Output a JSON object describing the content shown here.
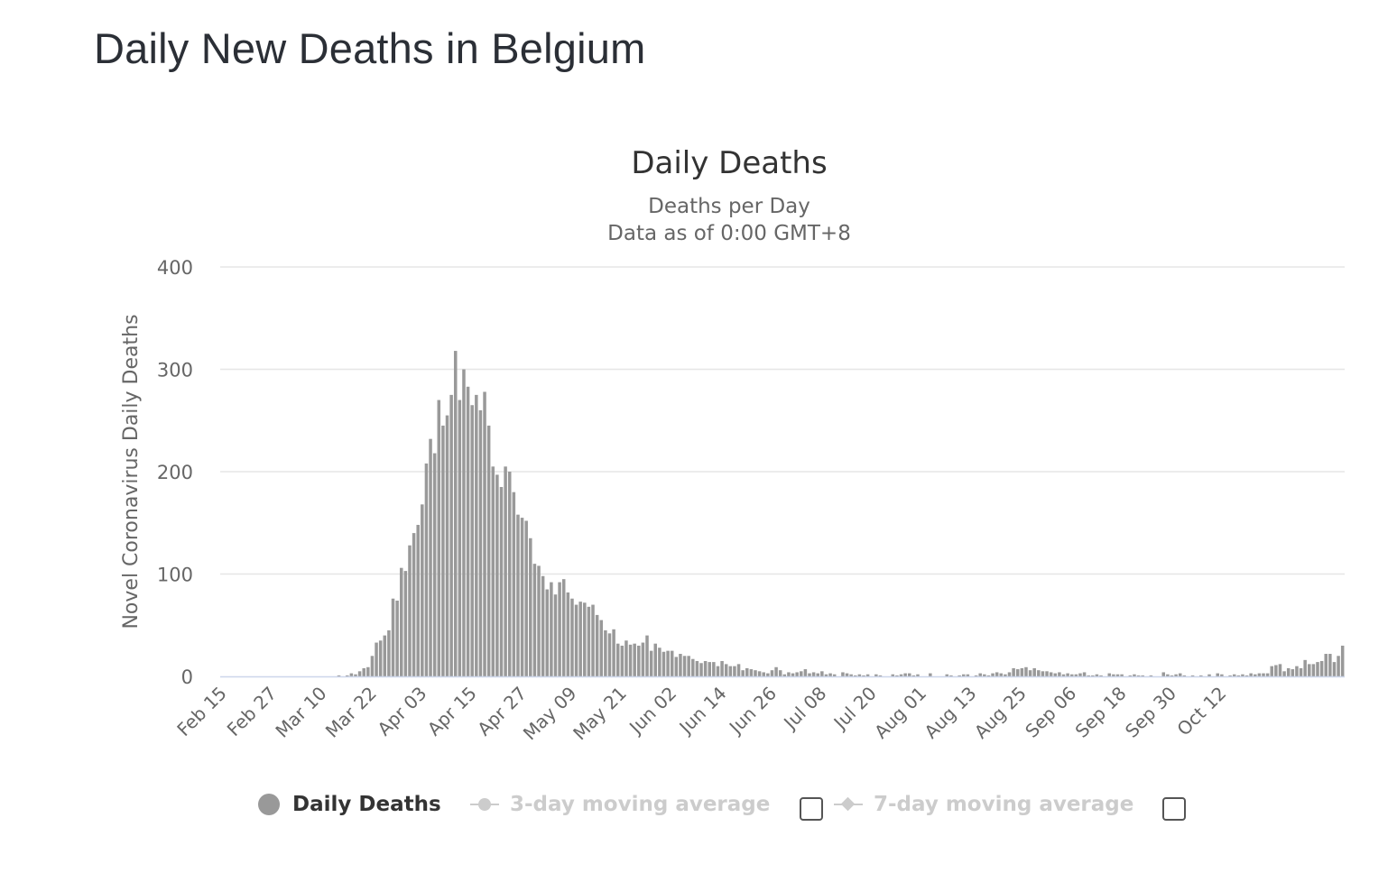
{
  "page": {
    "heading": "Daily New Deaths in Belgium"
  },
  "chart_data": {
    "type": "bar",
    "title": "Daily Deaths",
    "subtitle_lines": [
      "Deaths per Day",
      "Data as of 0:00 GMT+8"
    ],
    "ylabel": "Novel Coronavirus Daily Deaths",
    "xlabel": "",
    "ylim": [
      0,
      400
    ],
    "yticks": [
      0,
      100,
      200,
      300,
      400
    ],
    "grid": true,
    "start_date": "Feb 15",
    "xtick_labels": [
      "Feb 15",
      "Feb 27",
      "Mar 10",
      "Mar 22",
      "Apr 03",
      "Apr 15",
      "Apr 27",
      "May 09",
      "May 21",
      "Jun 02",
      "Jun 14",
      "Jun 26",
      "Jul 08",
      "Jul 20",
      "Aug 01",
      "Aug 13",
      "Aug 25",
      "Sep 06",
      "Sep 18",
      "Sep 30",
      "Oct 12"
    ],
    "bar_color": "#999999",
    "series": [
      {
        "name": "Daily Deaths",
        "color": "#999999",
        "values": [
          0,
          0,
          0,
          0,
          0,
          0,
          0,
          0,
          0,
          0,
          0,
          0,
          0,
          0,
          0,
          0,
          0,
          0,
          0,
          0,
          0,
          0,
          0,
          0,
          0,
          0,
          0,
          0,
          1,
          0,
          1,
          3,
          2,
          5,
          8,
          9,
          20,
          33,
          35,
          40,
          45,
          76,
          74,
          106,
          103,
          128,
          140,
          148,
          168,
          208,
          232,
          218,
          270,
          245,
          255,
          275,
          318,
          270,
          300,
          283,
          265,
          275,
          260,
          278,
          245,
          205,
          197,
          185,
          205,
          200,
          180,
          158,
          155,
          152,
          135,
          110,
          108,
          98,
          85,
          92,
          80,
          92,
          95,
          82,
          76,
          70,
          73,
          72,
          68,
          70,
          60,
          55,
          45,
          42,
          46,
          32,
          30,
          35,
          31,
          32,
          30,
          33,
          40,
          25,
          32,
          28,
          24,
          25,
          25,
          19,
          22,
          20,
          20,
          17,
          15,
          13,
          15,
          14,
          14,
          10,
          15,
          12,
          10,
          10,
          12,
          6,
          8,
          7,
          6,
          5,
          4,
          3,
          6,
          9,
          6,
          2,
          4,
          3,
          4,
          5,
          7,
          3,
          4,
          3,
          5,
          2,
          3,
          2,
          0,
          4,
          3,
          2,
          1,
          2,
          1,
          2,
          0,
          2,
          1,
          0,
          0,
          2,
          1,
          2,
          3,
          3,
          1,
          2,
          0,
          0,
          3,
          0,
          0,
          0,
          2,
          1,
          0,
          1,
          2,
          2,
          0,
          1,
          3,
          2,
          1,
          3,
          4,
          3,
          2,
          4,
          8,
          7,
          8,
          9,
          6,
          8,
          6,
          5,
          5,
          4,
          3,
          4,
          2,
          3,
          2,
          2,
          3,
          4,
          1,
          1,
          2,
          1,
          0,
          3,
          2,
          2,
          2,
          0,
          1,
          2,
          1,
          1,
          0,
          1,
          0,
          0,
          4,
          2,
          1,
          2,
          3,
          1,
          0,
          1,
          0,
          1,
          0,
          2,
          0,
          3,
          2,
          0,
          1,
          2,
          1,
          2,
          1,
          3,
          2,
          3,
          3,
          3,
          10,
          11,
          12,
          5,
          8,
          7,
          10,
          8,
          16,
          12,
          12,
          14,
          15,
          22,
          22,
          14,
          20,
          30
        ]
      }
    ],
    "legend": {
      "placement": "bottom",
      "items": [
        {
          "label": "Daily Deaths",
          "state": "visible",
          "marker": "dot-icon"
        },
        {
          "label": "3-day moving average",
          "state": "hidden",
          "marker": "line-circle-icon"
        },
        {
          "label": "7-day moving average",
          "state": "hidden",
          "marker": "line-diamond-icon"
        }
      ]
    }
  }
}
